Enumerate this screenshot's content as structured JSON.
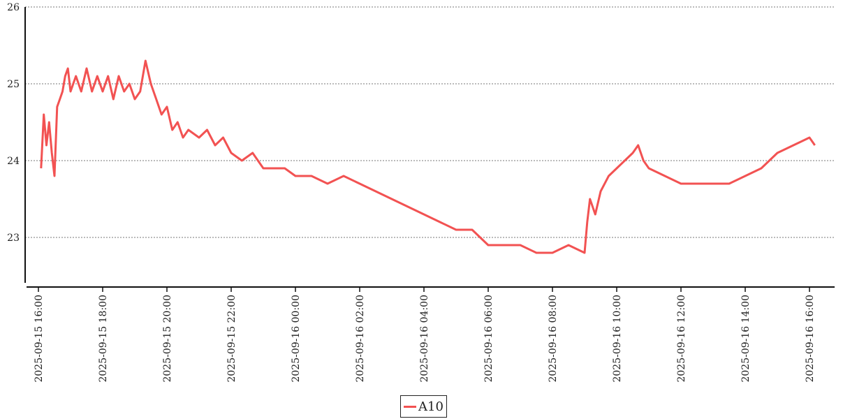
{
  "chart_data": {
    "type": "line",
    "title": "",
    "xlabel": "",
    "ylabel": "",
    "ylim": [
      22.4,
      26
    ],
    "y_ticks": [
      23,
      24,
      25,
      26
    ],
    "y_tick_labels": [
      "23",
      "24",
      "25",
      "26"
    ],
    "grid": "horizontal dotted",
    "legend_position": "bottom-center",
    "x_range": [
      "2025-09-15 15:40",
      "2025-09-16 16:40"
    ],
    "x_ticks": [
      "2025-09-15 16:00",
      "2025-09-15 18:00",
      "2025-09-15 20:00",
      "2025-09-15 22:00",
      "2025-09-16 00:00",
      "2025-09-16 02:00",
      "2025-09-16 04:00",
      "2025-09-16 06:00",
      "2025-09-16 08:00",
      "2025-09-16 10:00",
      "2025-09-16 12:00",
      "2025-09-16 14:00",
      "2025-09-16 16:00"
    ],
    "x_tick_labels": [
      "2025-09-15 16:00",
      "2025-09-15 18:00",
      "2025-09-15 20:00",
      "2025-09-15 22:00",
      "2025-09-16 00:00",
      "2025-09-16 02:00",
      "2025-09-16 04:00",
      "2025-09-16 06:00",
      "2025-09-16 08:00",
      "2025-09-16 10:00",
      "2025-09-16 12:00",
      "2025-09-16 14:00",
      "2025-09-16 16:00"
    ],
    "series": [
      {
        "name": "A10",
        "color": "#f25252",
        "points": [
          [
            "2025-09-15 16:05",
            23.9
          ],
          [
            "2025-09-15 16:10",
            24.6
          ],
          [
            "2025-09-15 16:15",
            24.2
          ],
          [
            "2025-09-15 16:20",
            24.5
          ],
          [
            "2025-09-15 16:25",
            24.1
          ],
          [
            "2025-09-15 16:30",
            23.8
          ],
          [
            "2025-09-15 16:35",
            24.7
          ],
          [
            "2025-09-15 16:40",
            24.8
          ],
          [
            "2025-09-15 16:45",
            24.9
          ],
          [
            "2025-09-15 16:50",
            25.1
          ],
          [
            "2025-09-15 16:55",
            25.2
          ],
          [
            "2025-09-15 17:00",
            24.9
          ],
          [
            "2025-09-15 17:10",
            25.1
          ],
          [
            "2025-09-15 17:20",
            24.9
          ],
          [
            "2025-09-15 17:30",
            25.2
          ],
          [
            "2025-09-15 17:40",
            24.9
          ],
          [
            "2025-09-15 17:50",
            25.1
          ],
          [
            "2025-09-15 18:00",
            24.9
          ],
          [
            "2025-09-15 18:10",
            25.1
          ],
          [
            "2025-09-15 18:20",
            24.8
          ],
          [
            "2025-09-15 18:30",
            25.1
          ],
          [
            "2025-09-15 18:40",
            24.9
          ],
          [
            "2025-09-15 18:50",
            25.0
          ],
          [
            "2025-09-15 19:00",
            24.8
          ],
          [
            "2025-09-15 19:10",
            24.9
          ],
          [
            "2025-09-15 19:20",
            25.3
          ],
          [
            "2025-09-15 19:30",
            25.0
          ],
          [
            "2025-09-15 19:40",
            24.8
          ],
          [
            "2025-09-15 19:50",
            24.6
          ],
          [
            "2025-09-15 20:00",
            24.7
          ],
          [
            "2025-09-15 20:10",
            24.4
          ],
          [
            "2025-09-15 20:20",
            24.5
          ],
          [
            "2025-09-15 20:30",
            24.3
          ],
          [
            "2025-09-15 20:40",
            24.4
          ],
          [
            "2025-09-15 21:00",
            24.3
          ],
          [
            "2025-09-15 21:15",
            24.4
          ],
          [
            "2025-09-15 21:30",
            24.2
          ],
          [
            "2025-09-15 21:45",
            24.3
          ],
          [
            "2025-09-15 22:00",
            24.1
          ],
          [
            "2025-09-15 22:20",
            24.0
          ],
          [
            "2025-09-15 22:40",
            24.1
          ],
          [
            "2025-09-15 23:00",
            23.9
          ],
          [
            "2025-09-15 23:20",
            23.9
          ],
          [
            "2025-09-15 23:40",
            23.9
          ],
          [
            "2025-09-16 00:00",
            23.8
          ],
          [
            "2025-09-16 00:30",
            23.8
          ],
          [
            "2025-09-16 01:00",
            23.7
          ],
          [
            "2025-09-16 01:30",
            23.8
          ],
          [
            "2025-09-16 02:00",
            23.7
          ],
          [
            "2025-09-16 02:30",
            23.6
          ],
          [
            "2025-09-16 03:00",
            23.5
          ],
          [
            "2025-09-16 03:30",
            23.4
          ],
          [
            "2025-09-16 04:00",
            23.3
          ],
          [
            "2025-09-16 04:30",
            23.2
          ],
          [
            "2025-09-16 05:00",
            23.1
          ],
          [
            "2025-09-16 05:30",
            23.1
          ],
          [
            "2025-09-16 06:00",
            22.9
          ],
          [
            "2025-09-16 06:30",
            22.9
          ],
          [
            "2025-09-16 07:00",
            22.9
          ],
          [
            "2025-09-16 07:30",
            22.8
          ],
          [
            "2025-09-16 08:00",
            22.8
          ],
          [
            "2025-09-16 08:30",
            22.9
          ],
          [
            "2025-09-16 09:00",
            22.8
          ],
          [
            "2025-09-16 09:05",
            23.2
          ],
          [
            "2025-09-16 09:10",
            23.5
          ],
          [
            "2025-09-16 09:20",
            23.3
          ],
          [
            "2025-09-16 09:30",
            23.6
          ],
          [
            "2025-09-16 09:45",
            23.8
          ],
          [
            "2025-09-16 10:00",
            23.9
          ],
          [
            "2025-09-16 10:15",
            24.0
          ],
          [
            "2025-09-16 10:30",
            24.1
          ],
          [
            "2025-09-16 10:40",
            24.2
          ],
          [
            "2025-09-16 10:50",
            24.0
          ],
          [
            "2025-09-16 11:00",
            23.9
          ],
          [
            "2025-09-16 11:30",
            23.8
          ],
          [
            "2025-09-16 12:00",
            23.7
          ],
          [
            "2025-09-16 12:30",
            23.7
          ],
          [
            "2025-09-16 13:00",
            23.7
          ],
          [
            "2025-09-16 13:30",
            23.7
          ],
          [
            "2025-09-16 14:00",
            23.8
          ],
          [
            "2025-09-16 14:30",
            23.9
          ],
          [
            "2025-09-16 15:00",
            24.1
          ],
          [
            "2025-09-16 15:30",
            24.2
          ],
          [
            "2025-09-16 16:00",
            24.3
          ],
          [
            "2025-09-16 16:10",
            24.2
          ]
        ]
      }
    ]
  }
}
